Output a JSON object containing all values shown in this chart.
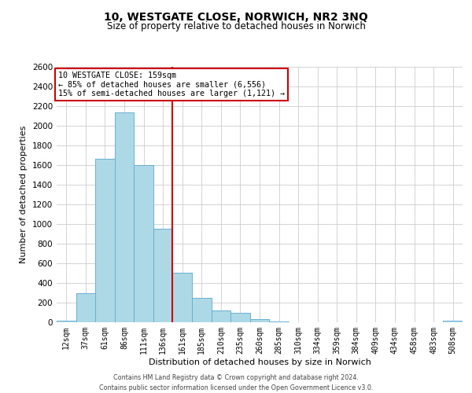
{
  "title": "10, WESTGATE CLOSE, NORWICH, NR2 3NQ",
  "subtitle": "Size of property relative to detached houses in Norwich",
  "xlabel": "Distribution of detached houses by size in Norwich",
  "ylabel": "Number of detached properties",
  "bin_labels": [
    "12sqm",
    "37sqm",
    "61sqm",
    "86sqm",
    "111sqm",
    "136sqm",
    "161sqm",
    "185sqm",
    "210sqm",
    "235sqm",
    "260sqm",
    "285sqm",
    "310sqm",
    "334sqm",
    "359sqm",
    "384sqm",
    "409sqm",
    "434sqm",
    "458sqm",
    "483sqm",
    "508sqm"
  ],
  "bar_values": [
    20,
    295,
    1665,
    2135,
    1600,
    955,
    505,
    250,
    120,
    95,
    32,
    8,
    4,
    2,
    2,
    2,
    1,
    1,
    0,
    0,
    14
  ],
  "bar_color": "#add8e6",
  "bar_edge_color": "#6ab0d4",
  "property_line_color": "#cc0000",
  "property_line_bin": 6,
  "annotation_line1": "10 WESTGATE CLOSE: 159sqm",
  "annotation_line2": "← 85% of detached houses are smaller (6,556)",
  "annotation_line3": "15% of semi-detached houses are larger (1,121) →",
  "annotation_box_color": "#cc0000",
  "ylim": [
    0,
    2600
  ],
  "yticks": [
    0,
    200,
    400,
    600,
    800,
    1000,
    1200,
    1400,
    1600,
    1800,
    2000,
    2200,
    2400,
    2600
  ],
  "footer_line1": "Contains HM Land Registry data © Crown copyright and database right 2024.",
  "footer_line2": "Contains public sector information licensed under the Open Government Licence v3.0.",
  "background_color": "#ffffff",
  "grid_color": "#cccccc"
}
